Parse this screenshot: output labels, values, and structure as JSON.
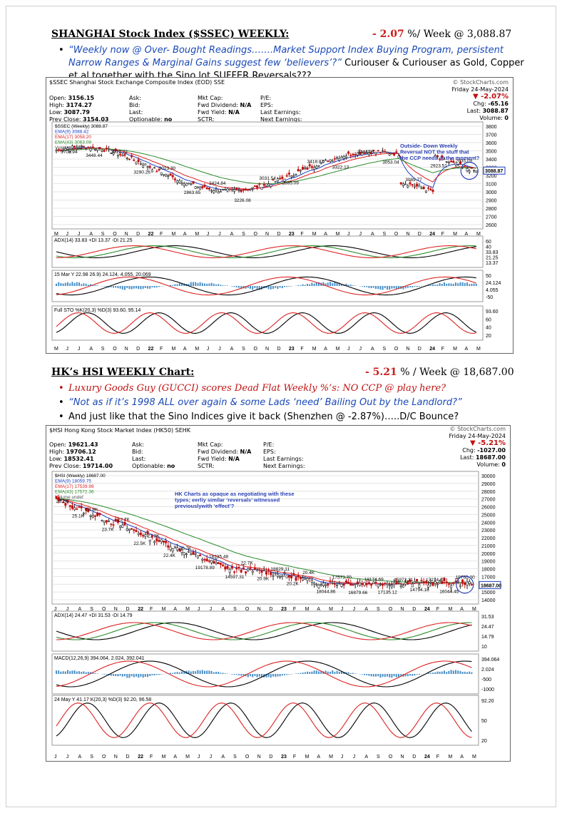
{
  "ssec": {
    "heading": "SHANGHAI Stock Index ($SSEC) WEEKLY:",
    "change_value": "- 2.07",
    "change_suffix": " %/ Week @ 3,088.87",
    "bullet_blue": "“Weekly now @ Over- Bought Readings…….Market Support Index Buying Program, persistent Narrow Ranges & Marginal Gains suggest few ‘believers’?”",
    "bullet_black": " Curiouser & Curiouser as Gold, Copper et al together with the Sino lot SUFFER Reversals???",
    "chart": {
      "title": "$SSEC Shanghai Stock Exchange Composite Index (EOD) SSE",
      "watermark": "© StockCharts.com",
      "date": "Friday 24-May-2024",
      "open_label": "Open:",
      "open": "3156.15",
      "high_label": "High:",
      "high": "3174.27",
      "low_label": "Low:",
      "low": "3087.79",
      "prev_label": "Prev Close:",
      "prev": "3154.03",
      "ask": "Ask:",
      "bid": "Bid:",
      "last_lbl": "Last:",
      "optionable": "Optionable:",
      "optionable_val": "no",
      "mktcap": "Mkt Cap:",
      "fwddiv": "Fwd Dividend:",
      "fwddiv_val": "N/A",
      "fwdyield": "Fwd Yield:",
      "fwdyield_val": "N/A",
      "sctr": "SCTR:",
      "pe": "P/E:",
      "eps": "EPS:",
      "lastearn": "Last Earnings:",
      "nextearn": "Next Earnings:",
      "pct": "-2.07%",
      "chg_label": "Chg:",
      "chg": "-65.16",
      "last_label": "Last:",
      "last": "3088.87",
      "vol_label": "Volume:",
      "vol": "0",
      "legend": [
        "$SSEC (Weekly) 3088.87",
        "EMA(9) 3088.42",
        "EMA(17) 3058.20",
        "EMA(43) 3063.09",
        "Volume undef"
      ],
      "annotation": "Outside- Down Weekly Reversal NOT the stuff that the CCP needs @ the moment?",
      "price_labels": [
        "3708.94",
        "3448.44",
        "3312.72",
        "3290.26",
        "3023.30",
        "2863.65",
        "3424.84",
        "3226.08",
        "3031.54",
        "2885.09",
        "3418.87",
        "3322.13",
        "3144.25",
        "3053.04",
        "3089.77",
        "2923.51",
        "2635.09"
      ],
      "y_ticks": [
        "3800",
        "3700",
        "3600",
        "3500",
        "3400",
        "3300",
        "3200",
        "3100",
        "3000",
        "2900",
        "2800",
        "2700",
        "2600"
      ],
      "last_tag": "3088.87",
      "months": [
        "M",
        "J",
        "J",
        "A",
        "S",
        "O",
        "N",
        "D",
        "22",
        "F",
        "M",
        "A",
        "M",
        "J",
        "J",
        "A",
        "S",
        "O",
        "N",
        "D",
        "23",
        "F",
        "M",
        "A",
        "M",
        "J",
        "J",
        "A",
        "S",
        "O",
        "N",
        "D",
        "24",
        "F",
        "M",
        "A",
        "M"
      ],
      "adx_label": "ADX(14) 33.83 +DI 13.37 -DI 21.25",
      "adx_ticks": [
        "60",
        "40",
        "33.83",
        "21.25",
        "13.37"
      ],
      "macd_label": "15 Mar Y 22.98 26.9) 24.124, 4.055, 20.069",
      "macd_ticks": [
        "50",
        "24.124",
        "4.055",
        "-50"
      ],
      "sto_label": "Full STO %K(20,3) %D(3) 93.60, 95.14",
      "sto_ticks": [
        "93.60",
        "60",
        "40",
        "20"
      ]
    }
  },
  "hsi": {
    "heading": "HK’s HSI WEEKLY Chart:",
    "change_value": "- 5.21",
    "change_suffix": " % / Week @ 18,687.00",
    "bullet_red": "Luxury Goods Guy (GUCCI) scores Dead Flat Weekly %’s: NO CCP @ play here?",
    "bullet_blue": "“Not as if it’s 1998 ALL over again & some Lads ‘need’ Bailing Out by the Landlord?”",
    "bullet_black": "And just like that the Sino Indices give it back (Shenzhen @ -2.87%)…..D/C Bounce?",
    "chart": {
      "title": "$HSI Hong Kong Stock Market Index (HK50) SEHK",
      "watermark": "© StockCharts.com",
      "date": "Friday 24-May-2024",
      "open_label": "Open:",
      "open": "19621.43",
      "high_label": "High:",
      "high": "19706.12",
      "low_label": "Low:",
      "low": "18532.41",
      "prev_label": "Prev Close:",
      "prev": "19714.00",
      "ask": "Ask:",
      "bid": "Bid:",
      "last_lbl": "Last:",
      "optionable": "Optionable:",
      "optionable_val": "no",
      "mktcap": "Mkt Cap:",
      "fwddiv": "Fwd Dividend:",
      "fwddiv_val": "N/A",
      "fwdyield": "Fwd Yield:",
      "fwdyield_val": "N/A",
      "sctr": "SCTR:",
      "pe": "P/E:",
      "eps": "EPS:",
      "lastearn": "Last Earnings:",
      "nextearn": "Next Earnings:",
      "pct": "-5.21%",
      "chg_label": "Chg:",
      "chg": "-1027.00",
      "last_label": "Last:",
      "last": "18687.00",
      "vol_label": "Volume:",
      "vol": "0",
      "legend": [
        "$HSI (Weekly) 18687.00",
        "EMA(9) 18059.75",
        "EMA(17) 17539.98",
        "EMA(43) 17572.36",
        "Volume undef"
      ],
      "annotation": "HK Charts as opaque as negotiating with these types; eerliy similar ‘reversals’ witnessed previouslywith ‘effect’?",
      "price_labels": [
        "26.2K",
        "25.1K",
        "24.8K",
        "23.7K",
        "22.7K",
        "22.5K",
        "21.3K",
        "22.4K",
        "20.7K",
        "19178.89",
        "18235.48",
        "14597.31",
        "22.7K",
        "20.9K",
        "18829.11",
        "20.2K",
        "20.4K",
        "18044.86",
        "17573.70",
        "16879.66",
        "18174.69",
        "17135.12",
        "15972.31",
        "14794.16",
        "17214.67",
        "16044.45",
        "19760.00"
      ],
      "y_ticks": [
        "30000",
        "29000",
        "28000",
        "27000",
        "26000",
        "25000",
        "24000",
        "23000",
        "22000",
        "21000",
        "20000",
        "19000",
        "18000",
        "17000",
        "16000",
        "15000",
        "14000"
      ],
      "last_tag": "18687.00",
      "months": [
        "J",
        "J",
        "A",
        "S",
        "O",
        "N",
        "D",
        "22",
        "F",
        "M",
        "A",
        "M",
        "J",
        "J",
        "A",
        "S",
        "O",
        "N",
        "D",
        "23",
        "F",
        "M",
        "A",
        "M",
        "J",
        "J",
        "A",
        "S",
        "O",
        "N",
        "D",
        "24",
        "F",
        "M",
        "A",
        "M"
      ],
      "adx_label": "ADX(14) 24.47 +DI 31.53 -DI 14.79",
      "adx_ticks": [
        "31.53",
        "24.47",
        "14.79",
        "10"
      ],
      "macd_label": "MACD(12,26,9) 394.064, 2.024, 392.041",
      "macd_ticks": [
        "394.064",
        "2.024",
        "-500",
        "-1000"
      ],
      "sto_label": "24 May Y 41.17 K(20,3) %D(3) 92.20, 96.58",
      "sto_ticks": [
        "92.20",
        "50",
        "20"
      ]
    }
  }
}
